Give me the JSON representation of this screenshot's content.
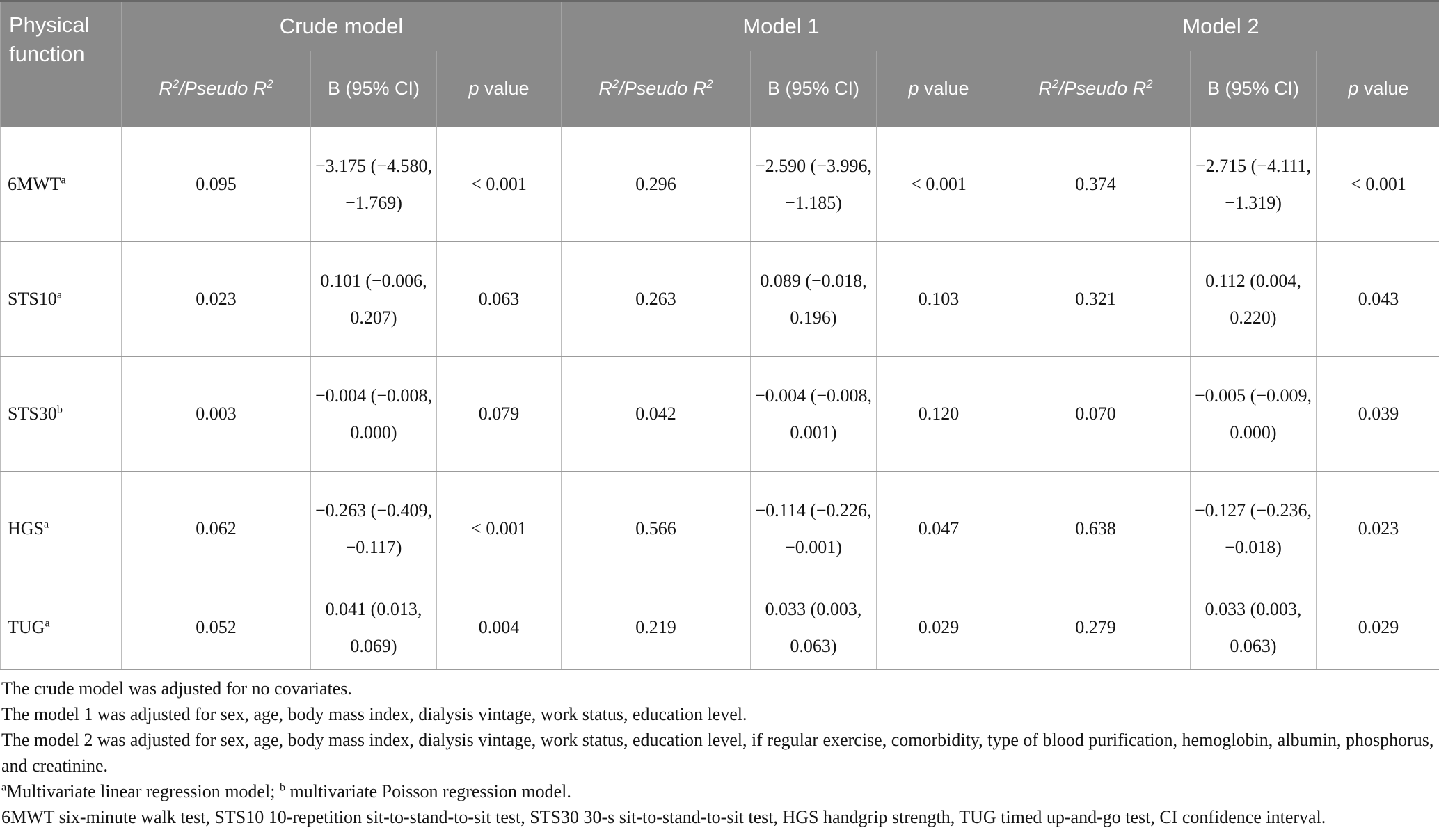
{
  "meta": {
    "colors": {
      "header_bg": "#8a8a8a",
      "header_text": "#ffffff",
      "header_border": "#a3a3a3",
      "body_text": "#141414",
      "border_light": "#bdbdbd",
      "border_mid": "#9b9b9b",
      "table_top": "#686868"
    }
  },
  "table": {
    "corner_header": "Physical function",
    "groups": [
      {
        "label": "Crude model"
      },
      {
        "label": "Model 1"
      },
      {
        "label": "Model 2"
      }
    ],
    "sub_headers": {
      "r2": {
        "base1": "R",
        "sup1": "2",
        "base2": "/Pseudo R",
        "sup2": "2"
      },
      "b": "B (95% CI)",
      "p": {
        "italic": "p",
        "rest": " value"
      }
    },
    "rows": [
      {
        "label": "6MWT",
        "label_sup": "a",
        "cells": [
          {
            "r2": "0.095",
            "b": "−3.175 (−4.580, −1.769)",
            "p": "< 0.001"
          },
          {
            "r2": "0.296",
            "b": "−2.590 (−3.996, −1.185)",
            "p": "< 0.001"
          },
          {
            "r2": "0.374",
            "b": "−2.715 (−4.111, −1.319)",
            "p": "< 0.001"
          }
        ]
      },
      {
        "label": "STS10",
        "label_sup": "a",
        "cells": [
          {
            "r2": "0.023",
            "b": "0.101 (−0.006, 0.207)",
            "p": "0.063"
          },
          {
            "r2": "0.263",
            "b": "0.089 (−0.018, 0.196)",
            "p": "0.103"
          },
          {
            "r2": "0.321",
            "b": "0.112 (0.004, 0.220)",
            "p": "0.043"
          }
        ]
      },
      {
        "label": "STS30",
        "label_sup": "b",
        "cells": [
          {
            "r2": "0.003",
            "b": "−0.004 (−0.008, 0.000)",
            "p": "0.079"
          },
          {
            "r2": "0.042",
            "b": "−0.004 (−0.008, 0.001)",
            "p": "0.120"
          },
          {
            "r2": "0.070",
            "b": "−0.005 (−0.009, 0.000)",
            "p": "0.039"
          }
        ]
      },
      {
        "label": "HGS",
        "label_sup": "a",
        "cells": [
          {
            "r2": "0.062",
            "b": "−0.263 (−0.409, −0.117)",
            "p": "< 0.001"
          },
          {
            "r2": "0.566",
            "b": "−0.114 (−0.226, −0.001)",
            "p": "0.047"
          },
          {
            "r2": "0.638",
            "b": "−0.127 (−0.236, −0.018)",
            "p": "0.023"
          }
        ]
      },
      {
        "label": "TUG",
        "label_sup": "a",
        "cells": [
          {
            "r2": "0.052",
            "b": "0.041 (0.013, 0.069)",
            "p": "0.004"
          },
          {
            "r2": "0.219",
            "b": "0.033 (0.003, 0.063)",
            "p": "0.029"
          },
          {
            "r2": "0.279",
            "b": "0.033 (0.003, 0.063)",
            "p": "0.029"
          }
        ]
      }
    ]
  },
  "footnotes": [
    {
      "segments": [
        {
          "text": "The crude model was adjusted for no covariates."
        }
      ]
    },
    {
      "segments": [
        {
          "text": "The model 1 was adjusted for sex, age, body mass index, dialysis vintage, work status, education level."
        }
      ]
    },
    {
      "segments": [
        {
          "text": "The model 2 was adjusted for sex, age, body mass index, dialysis vintage, work status, education level, if regular exercise, comorbidity, type of blood purification, hemoglobin, albumin, phosphorus, and creatinine."
        }
      ]
    },
    {
      "segments": [
        {
          "text": "a",
          "sup": true
        },
        {
          "text": "Multivariate linear regression model; "
        },
        {
          "text": "b",
          "sup": true
        },
        {
          "text": " multivariate Poisson regression model."
        }
      ]
    },
    {
      "segments": [
        {
          "text": "6MWT six-minute walk test, STS10 10-repetition sit-to-stand-to-sit test, STS30 30-s sit-to-stand-to-sit test, HGS handgrip strength, TUG timed up-and-go test, CI confidence interval."
        }
      ]
    }
  ]
}
